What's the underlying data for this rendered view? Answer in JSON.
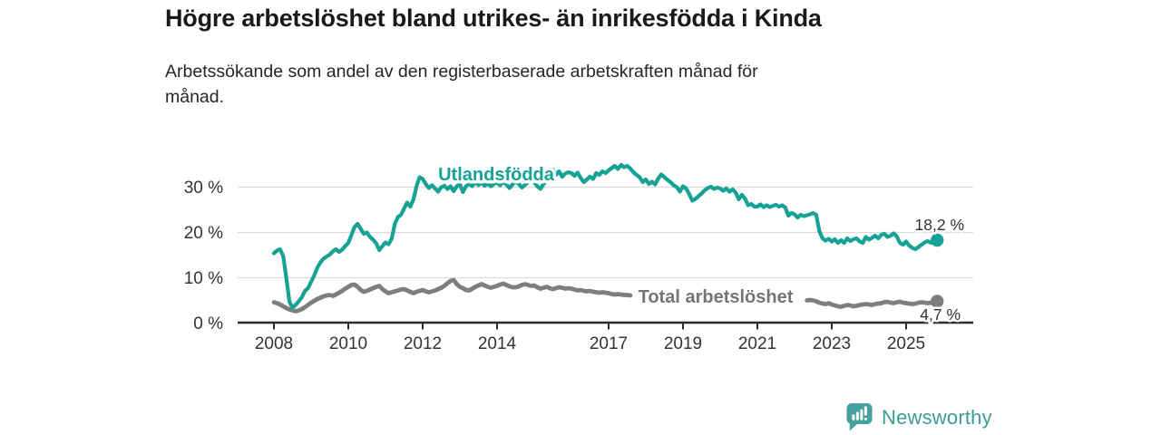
{
  "branding": {
    "logo_text": "Newsworthy",
    "logo_icon": "bar-chart-speech-bubble-icon",
    "logo_color": "#46A09B"
  },
  "chart_data": {
    "type": "line",
    "title": "Högre arbetslöshet bland utrikes- än inrikesfödda i Kinda",
    "subtitle_line1": "Arbetssökande som andel av den registerbaserade arbetskraften månad för",
    "subtitle_line2": "månad.",
    "unit": "%",
    "grid": "horizontal",
    "legend_position": "inline-labels",
    "x_range": [
      2006.85,
      2026.8
    ],
    "y_range": [
      0,
      36
    ],
    "x_ticks": [
      2008,
      2010,
      2012,
      2014,
      2017,
      2019,
      2021,
      2023,
      2025
    ],
    "x_tick_labels": [
      "2008",
      "2010",
      "2012",
      "2014",
      "2017",
      "2019",
      "2021",
      "2023",
      "2025"
    ],
    "y_ticks": [
      0,
      10,
      20,
      30
    ],
    "y_tick_labels": [
      "0 %",
      "10 %",
      "20 %",
      "30 %"
    ],
    "series": [
      {
        "name": "Utlandsfödda",
        "color": "#16A294",
        "end_value": 18.2,
        "end_label": "18,2 %",
        "start_year": 2008.0,
        "points_per_year": 12,
        "values": [
          15.3,
          15.9,
          16.2,
          14.6,
          9.8,
          4.6,
          3.3,
          3.9,
          4.7,
          5.6,
          7.0,
          7.6,
          9.0,
          10.4,
          12.1,
          13.3,
          14.1,
          14.6,
          15.0,
          15.7,
          16.2,
          15.6,
          16.1,
          16.9,
          17.6,
          19.3,
          21.1,
          21.8,
          20.7,
          19.6,
          19.9,
          18.9,
          18.3,
          17.5,
          16.0,
          16.9,
          17.7,
          17.3,
          18.5,
          21.8,
          23.3,
          23.8,
          25.2,
          26.5,
          25.6,
          27.2,
          30.1,
          32.1,
          31.7,
          30.6,
          29.7,
          30.3,
          29.6,
          28.9,
          29.9,
          30.2,
          29.5,
          30.1,
          29.0,
          30.1,
          30.6,
          28.8,
          30.1,
          30.7,
          30.1,
          31.0,
          30.4,
          30.9,
          30.2,
          30.7,
          30.1,
          30.6,
          30.9,
          30.3,
          31.1,
          30.5,
          29.7,
          30.5,
          31.2,
          30.6,
          29.8,
          30.4,
          31.0,
          31.4,
          31.0,
          30.1,
          29.5,
          30.6,
          31.3,
          32.2,
          33.8,
          32.6,
          33.4,
          32.2,
          32.9,
          33.2,
          33.0,
          32.4,
          33.1,
          31.9,
          31.0,
          31.6,
          32.2,
          31.7,
          33.0,
          32.6,
          33.4,
          33.0,
          33.6,
          34.1,
          34.6,
          33.9,
          34.8,
          34.3,
          34.6,
          34.0,
          33.2,
          32.6,
          32.1,
          31.0,
          31.6,
          30.6,
          31.1,
          30.5,
          31.8,
          32.7,
          32.1,
          31.5,
          31.0,
          30.3,
          29.9,
          28.9,
          30.1,
          29.6,
          28.4,
          26.9,
          27.3,
          27.9,
          28.5,
          29.2,
          29.7,
          30.0,
          29.5,
          29.8,
          29.6,
          29.1,
          29.6,
          28.9,
          29.4,
          28.7,
          27.2,
          28.2,
          27.4,
          25.9,
          26.2,
          25.6,
          25.6,
          26.1,
          25.5,
          25.9,
          25.5,
          25.8,
          26.0,
          25.6,
          25.9,
          25.4,
          23.6,
          24.2,
          23.9,
          23.2,
          23.8,
          23.5,
          23.7,
          23.9,
          24.2,
          23.8,
          20.2,
          18.6,
          18.1,
          18.5,
          17.9,
          18.4,
          17.6,
          18.2,
          17.6,
          18.6,
          18.0,
          18.4,
          18.6,
          17.9,
          17.6,
          18.9,
          18.3,
          18.7,
          19.2,
          18.6,
          19.4,
          19.6,
          18.9,
          19.2,
          19.7,
          19.0,
          17.6,
          17.2,
          17.9,
          17.0,
          16.5,
          16.2,
          16.7,
          17.2,
          17.7,
          18.0,
          17.6,
          17.9,
          18.2
        ]
      },
      {
        "name": "Total arbetslöshet",
        "color": "#7E7E7E",
        "end_value": 4.7,
        "end_label": "4,7 %",
        "start_year": 2008.0,
        "points_per_year": 12,
        "hidden_x_range": [
          2017.62,
          2022.32
        ],
        "values": [
          4.5,
          4.3,
          4.0,
          3.6,
          3.2,
          2.9,
          2.7,
          2.5,
          2.7,
          3.0,
          3.4,
          3.9,
          4.4,
          4.8,
          5.2,
          5.5,
          5.8,
          6.0,
          6.1,
          5.9,
          6.2,
          6.6,
          7.0,
          7.5,
          7.9,
          8.3,
          8.4,
          7.9,
          7.2,
          6.8,
          7.0,
          7.3,
          7.6,
          7.9,
          8.1,
          7.4,
          6.9,
          6.5,
          6.7,
          6.9,
          7.1,
          7.3,
          7.4,
          7.1,
          6.8,
          6.5,
          6.8,
          7.0,
          7.2,
          6.9,
          6.7,
          6.9,
          7.1,
          7.4,
          7.7,
          8.1,
          8.7,
          9.2,
          9.4,
          8.5,
          7.9,
          7.6,
          7.2,
          7.1,
          7.5,
          7.9,
          8.2,
          8.5,
          8.2,
          7.9,
          7.7,
          7.9,
          8.1,
          8.4,
          8.6,
          8.3,
          8.0,
          7.8,
          7.8,
          8.0,
          8.3,
          8.5,
          8.3,
          8.1,
          8.2,
          7.8,
          7.5,
          7.7,
          7.9,
          7.6,
          7.4,
          7.6,
          7.8,
          7.7,
          7.5,
          7.6,
          7.5,
          7.3,
          7.1,
          7.2,
          7.0,
          6.9,
          7.0,
          6.8,
          6.7,
          6.6,
          6.7,
          6.6,
          6.5,
          6.3,
          6.2,
          6.3,
          6.2,
          6.1,
          6.1,
          6.0,
          5.9,
          5.9,
          5.8,
          5.9,
          5.8,
          5.7,
          5.6,
          5.5,
          5.5,
          5.4,
          5.4,
          5.3,
          5.2,
          5.2,
          5.1,
          5.2,
          5.1,
          5.0,
          4.9,
          5.0,
          4.9,
          4.9,
          5.0,
          5.1,
          5.2,
          5.3,
          5.4,
          5.5,
          5.6,
          5.7,
          6.0,
          6.3,
          6.5,
          6.6,
          6.6,
          6.5,
          6.3,
          6.1,
          6.0,
          5.9,
          5.8,
          5.7,
          5.6,
          5.5,
          5.4,
          5.3,
          5.2,
          5.1,
          5.0,
          4.9,
          4.9,
          5.0,
          4.9,
          4.8,
          4.7,
          4.8,
          4.9,
          5.0,
          4.9,
          4.7,
          4.4,
          4.2,
          4.1,
          4.3,
          4.0,
          3.8,
          3.6,
          3.5,
          3.7,
          3.9,
          3.8,
          3.6,
          3.7,
          3.9,
          4.0,
          4.1,
          4.0,
          3.9,
          4.1,
          4.2,
          4.3,
          4.5,
          4.6,
          4.4,
          4.3,
          4.5,
          4.6,
          4.4,
          4.3,
          4.2,
          4.1,
          4.2,
          4.4,
          4.5,
          4.4,
          4.3,
          4.4,
          4.6,
          4.7
        ]
      }
    ]
  }
}
